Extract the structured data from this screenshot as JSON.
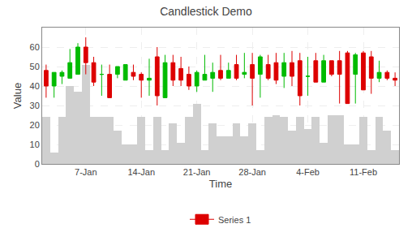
{
  "chart_data": {
    "type": "candlestick",
    "title": "Candlestick Demo",
    "xlabel": "Time",
    "ylabel": "Value",
    "x": [
      1,
      2,
      3,
      4,
      5,
      6,
      7,
      8,
      9,
      10,
      11,
      12,
      13,
      14,
      15,
      16,
      17,
      18,
      19,
      20,
      21,
      22,
      23,
      24,
      25,
      26,
      27,
      28,
      29,
      30,
      31,
      32,
      33,
      34,
      35,
      36,
      37,
      38,
      39,
      40,
      41,
      42,
      43,
      44,
      45
    ],
    "xlim": [
      0.5,
      45.5
    ],
    "xticks": [
      {
        "value": 6,
        "label": "7-Jan"
      },
      {
        "value": 13,
        "label": "14-Jan"
      },
      {
        "value": 20,
        "label": "21-Jan"
      },
      {
        "value": 27,
        "label": "28-Jan"
      },
      {
        "value": 34,
        "label": "4-Feb"
      },
      {
        "value": 41,
        "label": "11-Feb"
      }
    ],
    "ylim": [
      0,
      70
    ],
    "yticks": [
      0,
      10,
      20,
      30,
      40,
      50,
      60
    ],
    "grid": true,
    "legend": "bottom",
    "series": [
      {
        "type": "bar",
        "color": "#d0d0d0",
        "values": [
          24,
          6,
          24,
          40,
          37,
          51,
          24,
          24,
          24,
          17,
          10,
          10,
          24,
          7,
          24,
          7,
          21,
          11,
          24,
          31,
          7,
          21,
          14,
          14,
          21,
          14,
          21,
          7,
          24,
          25,
          24,
          17,
          24,
          18,
          24,
          11,
          25,
          25,
          10,
          10,
          24,
          7,
          24,
          17,
          7
        ]
      },
      {
        "type": "candlestick",
        "name": "Series 1",
        "open": [
          48,
          40,
          45,
          44,
          46,
          60,
          52,
          46,
          46,
          46,
          43,
          47,
          46,
          43,
          55,
          34,
          52,
          49,
          46,
          40,
          43,
          44,
          48,
          44,
          51,
          46,
          51,
          46,
          51,
          52,
          45,
          52,
          53,
          45,
          53,
          42,
          53,
          53,
          57,
          46,
          57,
          55,
          44,
          47,
          44
        ],
        "high": [
          51,
          47,
          48,
          59,
          62,
          65,
          55,
          51,
          51,
          50,
          51,
          51,
          47,
          54,
          60,
          56,
          56,
          55,
          50,
          48,
          56,
          52,
          56,
          52,
          56,
          57,
          57,
          56,
          56,
          57,
          57,
          58,
          57,
          55,
          57,
          56,
          53,
          58,
          58,
          57,
          58,
          58,
          53,
          48,
          47
        ],
        "low": [
          34,
          34,
          41,
          44,
          46,
          46,
          40,
          35,
          35,
          44,
          43,
          43,
          34,
          35,
          30,
          34,
          40,
          40,
          38,
          37,
          43,
          37,
          43,
          44,
          43,
          44,
          30,
          34,
          43,
          41,
          39,
          40,
          30,
          35,
          45,
          42,
          45,
          31,
          38,
          31,
          46,
          36,
          42,
          43,
          40
        ],
        "close": [
          40,
          47,
          47,
          52,
          60,
          52,
          42,
          46,
          34,
          50,
          51,
          45,
          43,
          44,
          35,
          52,
          43,
          43,
          40,
          47,
          46,
          47,
          44,
          48,
          44,
          47,
          44,
          55,
          44,
          43,
          52,
          45,
          35,
          45,
          42,
          53,
          46,
          46,
          31,
          56,
          38,
          44,
          47,
          44,
          43
        ],
        "colors": [
          "#dd0000",
          "#00bb00",
          "#00bb00",
          "#00bb00",
          "#00bb00",
          "#dd0000",
          "#dd0000",
          "#00bb00",
          "#dd0000",
          "#00bb00",
          "#00bb00",
          "#dd0000",
          "#dd0000",
          "#00bb00",
          "#dd0000",
          "#00bb00",
          "#dd0000",
          "#dd0000",
          "#dd0000",
          "#00bb00",
          "#00bb00",
          "#00bb00",
          "#dd0000",
          "#00bb00",
          "#dd0000",
          "#00bb00",
          "#dd0000",
          "#00bb00",
          "#dd0000",
          "#dd0000",
          "#00bb00",
          "#dd0000",
          "#dd0000",
          "#00bb00",
          "#dd0000",
          "#00bb00",
          "#dd0000",
          "#dd0000",
          "#dd0000",
          "#00bb00",
          "#dd0000",
          "#dd0000",
          "#00bb00",
          "#dd0000",
          "#dd0000"
        ]
      }
    ]
  }
}
